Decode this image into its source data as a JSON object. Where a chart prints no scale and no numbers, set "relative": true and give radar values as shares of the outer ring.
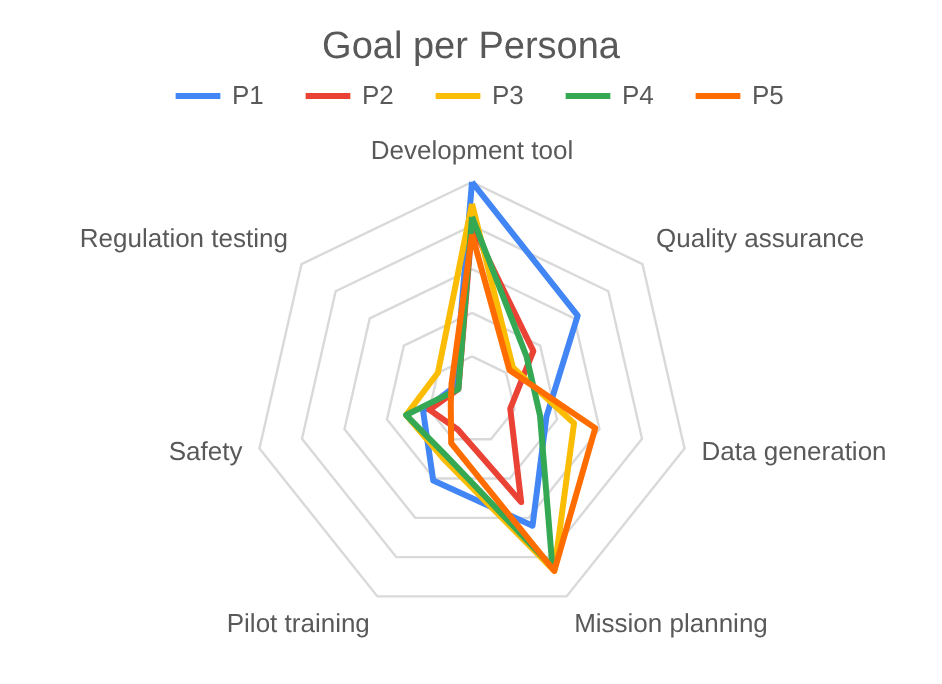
{
  "chart_data": {
    "type": "radar",
    "title": "Goal per Persona",
    "relative": true,
    "legend": "top",
    "grid": true,
    "categories": [
      "Development tool",
      "Quality assurance",
      "Data generation",
      "Mission planning",
      "Pilot training",
      "Safety",
      "Regulation testing"
    ],
    "series": [
      {
        "name": "P1",
        "color": "#4285f4",
        "values": [
          1.0,
          0.62,
          0.35,
          0.64,
          0.41,
          0.23,
          0.1
        ]
      },
      {
        "name": "P2",
        "color": "#ea4335",
        "values": [
          0.8,
          0.36,
          0.18,
          0.52,
          0.15,
          0.2,
          0.08
        ]
      },
      {
        "name": "P3",
        "color": "#fbbc04",
        "values": [
          0.9,
          0.24,
          0.48,
          0.87,
          0.3,
          0.31,
          0.2
        ]
      },
      {
        "name": "P4",
        "color": "#34a853",
        "values": [
          0.84,
          0.32,
          0.32,
          0.85,
          0.28,
          0.31,
          0.08
        ]
      },
      {
        "name": "P5",
        "color": "#ff6d01",
        "values": [
          0.76,
          0.22,
          0.58,
          0.87,
          0.22,
          0.1,
          0.12
        ]
      }
    ]
  }
}
